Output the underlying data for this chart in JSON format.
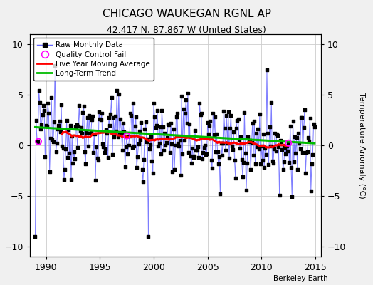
{
  "title": "CHICAGO WAUKEGAN RGNL AP",
  "subtitle": "42.417 N, 87.867 W (United States)",
  "ylabel": "Temperature Anomaly (°C)",
  "credit": "Berkeley Earth",
  "xlim": [
    1988.5,
    2015.5
  ],
  "ylim": [
    -11,
    11
  ],
  "yticks": [
    -10,
    -5,
    0,
    5,
    10
  ],
  "xticks": [
    1990,
    1995,
    2000,
    2005,
    2010,
    2015
  ],
  "bg_color": "#f0f0f0",
  "plot_bg": "#ffffff",
  "raw_line_color": "#6666ff",
  "raw_dot_color": "#000000",
  "ma_color": "#ff0000",
  "trend_color": "#00bb00",
  "qc_color": "#ff00ff",
  "grid_color": "#cccccc",
  "seed": 12345
}
